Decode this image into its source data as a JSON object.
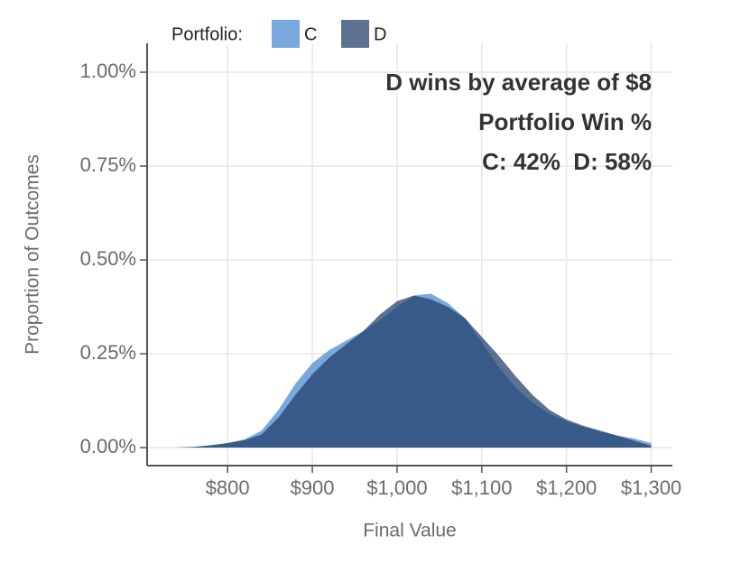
{
  "chart_data": {
    "type": "area",
    "xlabel": "Final Value",
    "ylabel": "Proportion of Outcomes",
    "legend_title": "Portfolio:",
    "legend": "top",
    "grid": true,
    "annotations": [
      "D wins by average of $8",
      "Portfolio Win %",
      "C: 42%  D: 58%"
    ],
    "x": [
      740,
      760,
      780,
      800,
      820,
      840,
      860,
      880,
      900,
      920,
      940,
      960,
      980,
      1000,
      1020,
      1040,
      1060,
      1080,
      1100,
      1120,
      1140,
      1160,
      1180,
      1200,
      1220,
      1240,
      1260,
      1280,
      1300
    ],
    "series": [
      {
        "name": "C",
        "color": "#78a8de",
        "opacity": 1,
        "values": [
          0,
          0.002,
          0.006,
          0.012,
          0.022,
          0.045,
          0.1,
          0.17,
          0.225,
          0.26,
          0.285,
          0.31,
          0.34,
          0.375,
          0.405,
          0.41,
          0.385,
          0.345,
          0.28,
          0.215,
          0.16,
          0.12,
          0.09,
          0.07,
          0.055,
          0.042,
          0.032,
          0.024,
          0.012
        ]
      },
      {
        "name": "D",
        "color": "#1f3c68",
        "opacity": 0.72,
        "values": [
          0,
          0.002,
          0.006,
          0.012,
          0.02,
          0.035,
          0.08,
          0.14,
          0.195,
          0.24,
          0.275,
          0.31,
          0.355,
          0.39,
          0.405,
          0.395,
          0.375,
          0.345,
          0.295,
          0.245,
          0.19,
          0.14,
          0.1,
          0.075,
          0.058,
          0.045,
          0.032,
          0.018,
          0.005
        ]
      }
    ],
    "xlim": [
      705,
      1325
    ],
    "ylim": [
      -0.048,
      1.077
    ],
    "xticks": [
      {
        "value": 800,
        "label": "$800"
      },
      {
        "value": 900,
        "label": "$900"
      },
      {
        "value": 1000,
        "label": "$1,000"
      },
      {
        "value": 1100,
        "label": "$1,100"
      },
      {
        "value": 1200,
        "label": "$1,200"
      },
      {
        "value": 1300,
        "label": "$1,300"
      }
    ],
    "yticks": [
      {
        "value": 0,
        "label": "0.00%"
      },
      {
        "value": 0.25,
        "label": "0.25%"
      },
      {
        "value": 0.5,
        "label": "0.50%"
      },
      {
        "value": 0.75,
        "label": "0.75%"
      },
      {
        "value": 1,
        "label": "1.00%"
      }
    ]
  }
}
